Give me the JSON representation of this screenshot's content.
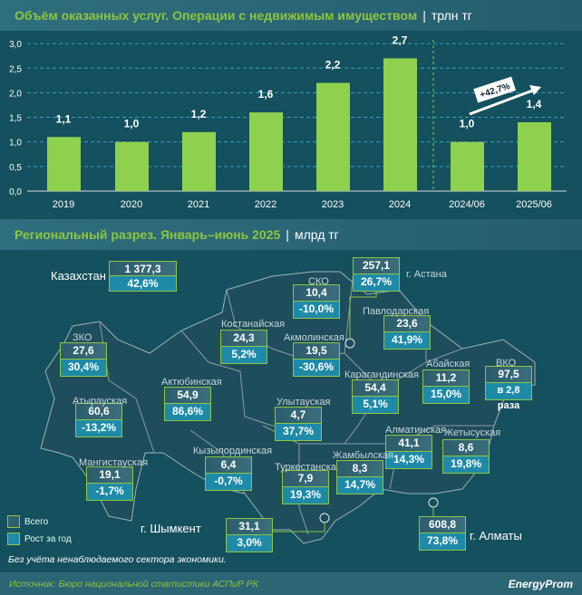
{
  "chart_title": {
    "main": "Объём оказанных услуг. Операции с недвижимым имуществом",
    "unit": "трлн тг"
  },
  "chart_data": {
    "type": "bar",
    "title": "Объём оказанных услуг. Операции с недвижимым имуществом",
    "ylabel": "трлн тг",
    "categories": [
      "2019",
      "2020",
      "2021",
      "2022",
      "2023",
      "2024",
      "2024/06",
      "2025/06"
    ],
    "values": [
      1.1,
      1.0,
      1.2,
      1.6,
      2.2,
      2.7,
      1.0,
      1.4
    ],
    "labels": [
      "1,1",
      "1,0",
      "1,2",
      "1,6",
      "2,2",
      "2,7",
      "1,0",
      "1,4"
    ],
    "ylim": [
      0,
      3
    ],
    "yticks": [
      "0,0",
      "0,5",
      "1,0",
      "1,5",
      "2,0",
      "2,5",
      "3,0"
    ],
    "grid": true,
    "annotation": "+42,7%",
    "bar_color": "#8fd14f"
  },
  "map_title": {
    "main": "Региональный разрез. Январь–июнь 2025",
    "unit": "млрд тг"
  },
  "regions": [
    {
      "name": "Казахстан",
      "total": "1 377,3",
      "growth": "42,6%"
    },
    {
      "name": "СКО",
      "total": "10,4",
      "growth": "-10,0%"
    },
    {
      "name": "г. Астана",
      "total": "257,1",
      "growth": "26,7%"
    },
    {
      "name": "Павлодарская",
      "total": "23,6",
      "growth": "41,9%"
    },
    {
      "name": "Костанайская",
      "total": "24,3",
      "growth": "5,2%"
    },
    {
      "name": "Акмолинская",
      "total": "19,5",
      "growth": "-30,6%"
    },
    {
      "name": "ЗКО",
      "total": "27,6",
      "growth": "30,4%"
    },
    {
      "name": "Актюбинская",
      "total": "54,9",
      "growth": "86,6%"
    },
    {
      "name": "Атырауская",
      "total": "60,6",
      "growth": "-13,2%"
    },
    {
      "name": "Карагандинская",
      "total": "54,4",
      "growth": "5,1%"
    },
    {
      "name": "Абайская",
      "total": "11,2",
      "growth": "15,0%"
    },
    {
      "name": "ВКО",
      "total": "97,5",
      "growth": "в 2,8 раза"
    },
    {
      "name": "Улытауская",
      "total": "4,7",
      "growth": "37,7%"
    },
    {
      "name": "Алматинская",
      "total": "41,1",
      "growth": "14,3%"
    },
    {
      "name": "Жетысуская",
      "total": "8,6",
      "growth": "19,8%"
    },
    {
      "name": "Кызылординская",
      "total": "6,4",
      "growth": "-0,7%"
    },
    {
      "name": "Мангистауская",
      "total": "19,1",
      "growth": "-1,7%"
    },
    {
      "name": "Туркестанская",
      "total": "7,9",
      "growth": "19,3%"
    },
    {
      "name": "Жамбылская",
      "total": "8,3",
      "growth": "14,7%"
    },
    {
      "name": "г. Шымкент",
      "total": "31,1",
      "growth": "3,0%"
    },
    {
      "name": "г. Алматы",
      "total": "608,8",
      "growth": "73,8%"
    }
  ],
  "legend": {
    "total": "Всего",
    "growth": "Рост за год"
  },
  "note": "Без учёта ненаблюдаемого сектора экономики.",
  "source": "Источник: Бюро национальной статистики АСПиР РК",
  "logo": "EnergyProm"
}
